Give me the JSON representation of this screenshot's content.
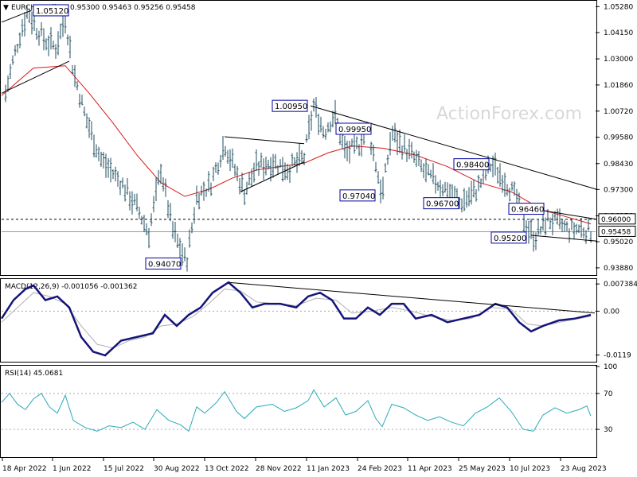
{
  "chart_data": [
    {
      "type": "line",
      "panel": "price",
      "symbol_header": "EURCHF,Daily",
      "ohlc_header": "0.95300 0.95463 0.95256 0.95458",
      "watermark": "ActionForex.com",
      "yticks": [
        "1.05280",
        "1.04150",
        "1.03000",
        "1.01860",
        "1.00720",
        "0.99580",
        "0.98430",
        "0.97300",
        "0.96150",
        "0.95020",
        "0.93880"
      ],
      "current_price_label": "0.95458",
      "level_label": "0.96000",
      "price_boxes": [
        "1.05120",
        "1.00950",
        "0.99950",
        "0.98400",
        "0.97040",
        "0.96700",
        "0.96460",
        "0.95200",
        "0.94070"
      ],
      "x_labels": [
        "18 Apr 2022",
        "1 Jun 2022",
        "15 Jul 2022",
        "30 Aug 2022",
        "13 Oct 2022",
        "28 Nov 2022",
        "11 Jan 2023",
        "24 Feb 2023",
        "11 Apr 2023",
        "25 May 2023",
        "10 Jul 2023",
        "23 Aug 2023"
      ],
      "ylim": [
        0.936,
        1.055
      ],
      "moving_average": [
        [
          0,
          1.014
        ],
        [
          40,
          1.026
        ],
        [
          80,
          1.027
        ],
        [
          110,
          1.015
        ],
        [
          140,
          1.002
        ],
        [
          170,
          0.988
        ],
        [
          200,
          0.976
        ],
        [
          230,
          0.97
        ],
        [
          260,
          0.973
        ],
        [
          290,
          0.978
        ],
        [
          320,
          0.9815
        ],
        [
          350,
          0.983
        ],
        [
          380,
          0.9845
        ],
        [
          410,
          0.989
        ],
        [
          440,
          0.992
        ],
        [
          480,
          0.991
        ],
        [
          520,
          0.988
        ],
        [
          560,
          0.983
        ],
        [
          600,
          0.976
        ],
        [
          640,
          0.972
        ],
        [
          680,
          0.964
        ],
        [
          710,
          0.961
        ],
        [
          740,
          0.958
        ]
      ],
      "price_path": [
        [
          5,
          1.015
        ],
        [
          15,
          1.03
        ],
        [
          25,
          1.043
        ],
        [
          33,
          1.0512
        ],
        [
          42,
          1.044
        ],
        [
          55,
          1.038
        ],
        [
          68,
          1.035
        ],
        [
          80,
          1.048
        ],
        [
          90,
          1.025
        ],
        [
          105,
          1.005
        ],
        [
          125,
          0.986
        ],
        [
          150,
          0.976
        ],
        [
          170,
          0.965
        ],
        [
          185,
          0.954
        ],
        [
          200,
          0.982
        ],
        [
          215,
          0.955
        ],
        [
          232,
          0.9407
        ],
        [
          245,
          0.97
        ],
        [
          262,
          0.975
        ],
        [
          280,
          0.993
        ],
        [
          295,
          0.98
        ],
        [
          305,
          0.972
        ],
        [
          320,
          0.983
        ],
        [
          340,
          0.985
        ],
        [
          360,
          0.982
        ],
        [
          380,
          0.987
        ],
        [
          392,
          1.0095
        ],
        [
          405,
          0.998
        ],
        [
          418,
          1.006
        ],
        [
          432,
          0.989
        ],
        [
          448,
          0.992
        ],
        [
          460,
          0.9995
        ],
        [
          470,
          0.984
        ],
        [
          478,
          0.9704
        ],
        [
          490,
          0.998
        ],
        [
          500,
          0.993
        ],
        [
          515,
          0.988
        ],
        [
          535,
          0.979
        ],
        [
          555,
          0.974
        ],
        [
          575,
          0.967
        ],
        [
          595,
          0.972
        ],
        [
          615,
          0.984
        ],
        [
          630,
          0.978
        ],
        [
          645,
          0.97
        ],
        [
          660,
          0.956
        ],
        [
          670,
          0.952
        ],
        [
          685,
          0.96
        ],
        [
          700,
          0.958
        ],
        [
          712,
          0.955
        ],
        [
          725,
          0.956
        ],
        [
          740,
          0.9546
        ]
      ]
    },
    {
      "type": "line",
      "panel": "macd",
      "header": "MACD(12,26,9) -0.001056 -0.001362",
      "yticks": [
        "0.007384",
        "0.00",
        "-0.0119"
      ],
      "ylim": [
        -0.0135,
        0.0085
      ],
      "macd_line": [
        [
          0,
          -0.002
        ],
        [
          15,
          0.003
        ],
        [
          30,
          0.006
        ],
        [
          40,
          0.007
        ],
        [
          55,
          0.003
        ],
        [
          70,
          0.004
        ],
        [
          85,
          0.001
        ],
        [
          100,
          -0.007
        ],
        [
          115,
          -0.011
        ],
        [
          130,
          -0.012
        ],
        [
          150,
          -0.008
        ],
        [
          170,
          -0.007
        ],
        [
          190,
          -0.006
        ],
        [
          205,
          -0.001
        ],
        [
          220,
          -0.004
        ],
        [
          235,
          -0.001
        ],
        [
          250,
          0.001
        ],
        [
          265,
          0.005
        ],
        [
          285,
          0.0078
        ],
        [
          300,
          0.005
        ],
        [
          315,
          0.001
        ],
        [
          330,
          0.002
        ],
        [
          350,
          0.002
        ],
        [
          370,
          0.001
        ],
        [
          385,
          0.004
        ],
        [
          400,
          0.005
        ],
        [
          415,
          0.003
        ],
        [
          430,
          -0.002
        ],
        [
          445,
          -0.002
        ],
        [
          460,
          0.001
        ],
        [
          475,
          -0.001
        ],
        [
          490,
          0.002
        ],
        [
          505,
          0.002
        ],
        [
          520,
          -0.002
        ],
        [
          540,
          -0.001
        ],
        [
          560,
          -0.003
        ],
        [
          580,
          -0.002
        ],
        [
          600,
          -0.001
        ],
        [
          620,
          0.002
        ],
        [
          635,
          0.001
        ],
        [
          650,
          -0.003
        ],
        [
          665,
          -0.0055
        ],
        [
          680,
          -0.004
        ],
        [
          700,
          -0.0025
        ],
        [
          720,
          -0.002
        ],
        [
          740,
          -0.001
        ]
      ],
      "signal_line": [
        [
          0,
          -0.003
        ],
        [
          20,
          0.001
        ],
        [
          40,
          0.005
        ],
        [
          60,
          0.004
        ],
        [
          80,
          0.002
        ],
        [
          100,
          -0.004
        ],
        [
          120,
          -0.009
        ],
        [
          140,
          -0.01
        ],
        [
          160,
          -0.008
        ],
        [
          180,
          -0.007
        ],
        [
          200,
          -0.004
        ],
        [
          220,
          -0.0035
        ],
        [
          240,
          -0.0015
        ],
        [
          260,
          0.002
        ],
        [
          280,
          0.006
        ],
        [
          300,
          0.0055
        ],
        [
          320,
          0.0025
        ],
        [
          345,
          0.002
        ],
        [
          370,
          0.0015
        ],
        [
          395,
          0.0035
        ],
        [
          420,
          0.003
        ],
        [
          440,
          -0.0005
        ],
        [
          465,
          0.0
        ],
        [
          490,
          0.001
        ],
        [
          515,
          0.0
        ],
        [
          540,
          -0.0015
        ],
        [
          565,
          -0.0025
        ],
        [
          590,
          -0.002
        ],
        [
          615,
          0.001
        ],
        [
          640,
          0.0005
        ],
        [
          660,
          -0.0035
        ],
        [
          680,
          -0.004
        ],
        [
          705,
          -0.0028
        ],
        [
          740,
          -0.0014
        ]
      ]
    },
    {
      "type": "line",
      "panel": "rsi",
      "header": "RSI(14) 45.0681",
      "yticks": [
        "100",
        "70",
        "30"
      ],
      "ylim": [
        0,
        100
      ],
      "rsi_line": [
        [
          0,
          60
        ],
        [
          10,
          70
        ],
        [
          20,
          58
        ],
        [
          30,
          52
        ],
        [
          40,
          64
        ],
        [
          50,
          70
        ],
        [
          60,
          55
        ],
        [
          70,
          48
        ],
        [
          80,
          68
        ],
        [
          90,
          40
        ],
        [
          105,
          32
        ],
        [
          120,
          28
        ],
        [
          135,
          34
        ],
        [
          150,
          32
        ],
        [
          165,
          38
        ],
        [
          180,
          30
        ],
        [
          195,
          52
        ],
        [
          210,
          40
        ],
        [
          225,
          35
        ],
        [
          235,
          28
        ],
        [
          245,
          55
        ],
        [
          255,
          48
        ],
        [
          270,
          60
        ],
        [
          280,
          72
        ],
        [
          295,
          50
        ],
        [
          305,
          42
        ],
        [
          320,
          55
        ],
        [
          340,
          58
        ],
        [
          355,
          50
        ],
        [
          370,
          54
        ],
        [
          385,
          62
        ],
        [
          392,
          74
        ],
        [
          405,
          55
        ],
        [
          420,
          65
        ],
        [
          432,
          46
        ],
        [
          445,
          50
        ],
        [
          460,
          62
        ],
        [
          470,
          42
        ],
        [
          478,
          33
        ],
        [
          490,
          58
        ],
        [
          505,
          54
        ],
        [
          520,
          46
        ],
        [
          535,
          40
        ],
        [
          550,
          44
        ],
        [
          565,
          38
        ],
        [
          580,
          34
        ],
        [
          595,
          48
        ],
        [
          610,
          55
        ],
        [
          625,
          65
        ],
        [
          640,
          50
        ],
        [
          655,
          30
        ],
        [
          668,
          28
        ],
        [
          680,
          46
        ],
        [
          695,
          54
        ],
        [
          710,
          48
        ],
        [
          725,
          52
        ],
        [
          735,
          56
        ],
        [
          740,
          45
        ]
      ]
    }
  ]
}
